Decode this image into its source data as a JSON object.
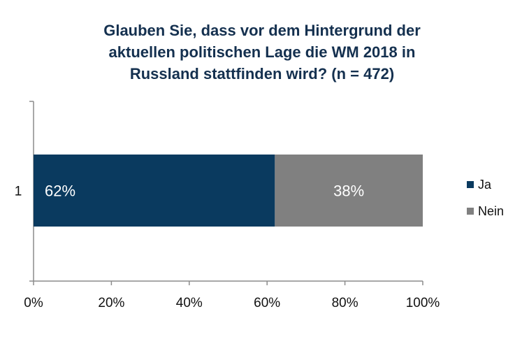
{
  "chart_data": {
    "type": "bar",
    "orientation": "horizontal",
    "stacked": true,
    "title_lines": [
      "Glauben Sie, dass vor dem Hintergrund der",
      "aktuellen politischen Lage die WM 2018 in",
      "Russland stattfinden wird? (n = 472)"
    ],
    "categories": [
      "1"
    ],
    "series": [
      {
        "name": "Ja",
        "values": [
          62
        ],
        "data_label": "62%",
        "color": "#0a3a5f"
      },
      {
        "name": "Nein",
        "values": [
          38
        ],
        "data_label": "38%",
        "color": "#808080"
      }
    ],
    "xlim": [
      0,
      100
    ],
    "x_ticks": [
      0,
      20,
      40,
      60,
      80,
      100
    ],
    "x_tick_labels": [
      "0%",
      "20%",
      "40%",
      "60%",
      "80%",
      "100%"
    ],
    "grid": false,
    "legend_position": "right"
  }
}
